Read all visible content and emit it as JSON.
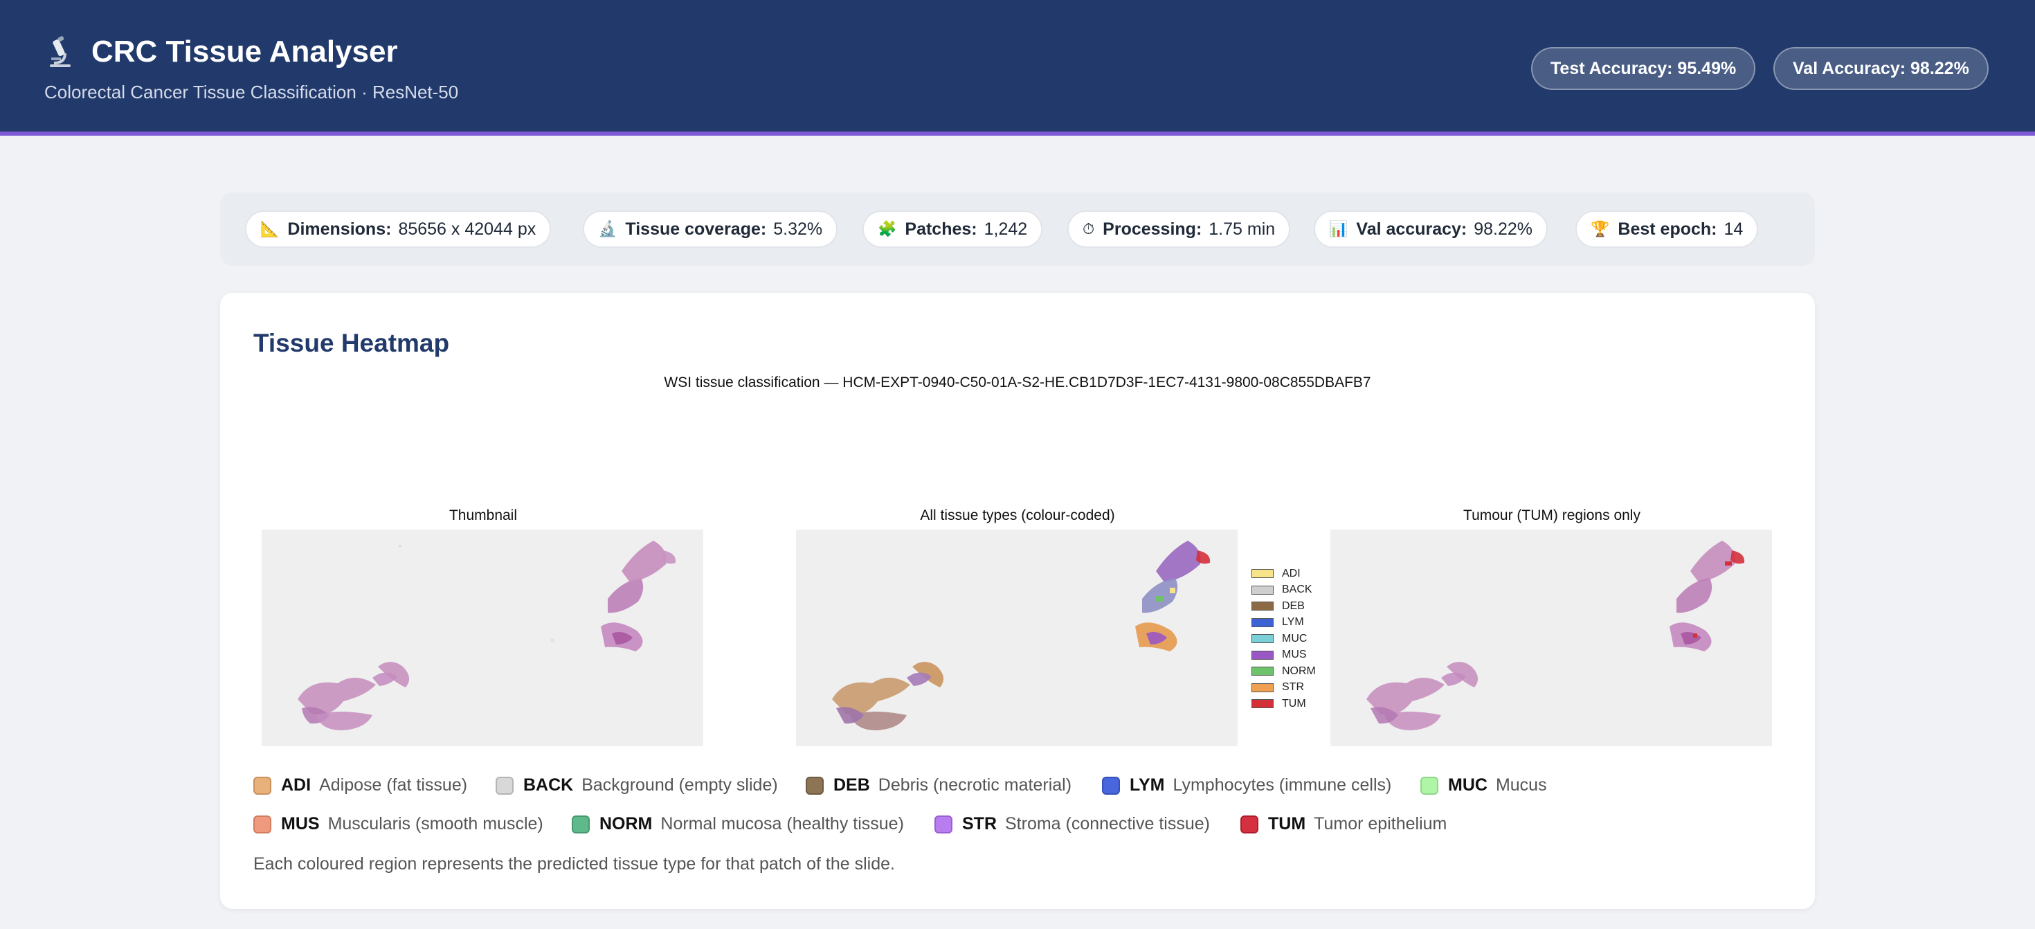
{
  "header": {
    "title": "CRC Tissue Analyser",
    "subtitle": "Colorectal Cancer Tissue Classification · ResNet-50",
    "logo_icon": "microscope-icon",
    "badges": {
      "test_accuracy": "Test Accuracy: 95.49%",
      "val_accuracy": "Val Accuracy: 98.22%"
    }
  },
  "stats": [
    {
      "icon": "ruler-icon",
      "label": "Dimensions:",
      "value": "85656 x 42044 px"
    },
    {
      "icon": "microscope-icon",
      "label": "Tissue coverage:",
      "value": "5.32%"
    },
    {
      "icon": "puzzle-icon",
      "label": "Patches:",
      "value": "1,242"
    },
    {
      "icon": "stopwatch-icon",
      "label": "Processing:",
      "value": "1.75 min"
    },
    {
      "icon": "bar-chart-icon",
      "label": "Val accuracy:",
      "value": "98.22%"
    },
    {
      "icon": "trophy-icon",
      "label": "Best epoch:",
      "value": "14"
    }
  ],
  "heatmap": {
    "title": "Tissue Heatmap",
    "figure_title": "WSI tissue classification — HCM-EXPT-0940-C50-01A-S2-HE.CB1D7D3F-1EC7-4131-9800-08C855DBAFB7",
    "panels": {
      "thumbnail": "Thumbnail",
      "all_types": "All tissue types (colour-coded)",
      "tumour_only": "Tumour (TUM) regions only"
    },
    "mini_legend": [
      {
        "code": "ADI",
        "color": "#f7e38a"
      },
      {
        "code": "BACK",
        "color": "#cfcfcf"
      },
      {
        "code": "DEB",
        "color": "#8b6a45"
      },
      {
        "code": "LYM",
        "color": "#3d62d4"
      },
      {
        "code": "MUC",
        "color": "#7bd0d8"
      },
      {
        "code": "MUS",
        "color": "#9a58c4"
      },
      {
        "code": "NORM",
        "color": "#6cc36a"
      },
      {
        "code": "STR",
        "color": "#f0a052"
      },
      {
        "code": "TUM",
        "color": "#d4303a"
      }
    ],
    "legend": [
      {
        "code": "ADI",
        "desc": "Adipose (fat tissue)",
        "color": "#e8b07a"
      },
      {
        "code": "BACK",
        "desc": "Background (empty slide)",
        "color": "#d8d8d8"
      },
      {
        "code": "DEB",
        "desc": "Debris (necrotic material)",
        "color": "#8c7455"
      },
      {
        "code": "LYM",
        "desc": "Lymphocytes (immune cells)",
        "color": "#4a66dc"
      },
      {
        "code": "MUC",
        "desc": "Mucus",
        "color": "#aef5a6"
      },
      {
        "code": "MUS",
        "desc": "Muscularis (smooth muscle)",
        "color": "#ef9a7e"
      },
      {
        "code": "NORM",
        "desc": "Normal mucosa (healthy tissue)",
        "color": "#5fb98a"
      },
      {
        "code": "STR",
        "desc": "Stroma (connective tissue)",
        "color": "#b87ef0"
      },
      {
        "code": "TUM",
        "desc": "Tumor epithelium",
        "color": "#d43040"
      }
    ],
    "note": "Each coloured region represents the predicted tissue type for that patch of the slide."
  }
}
